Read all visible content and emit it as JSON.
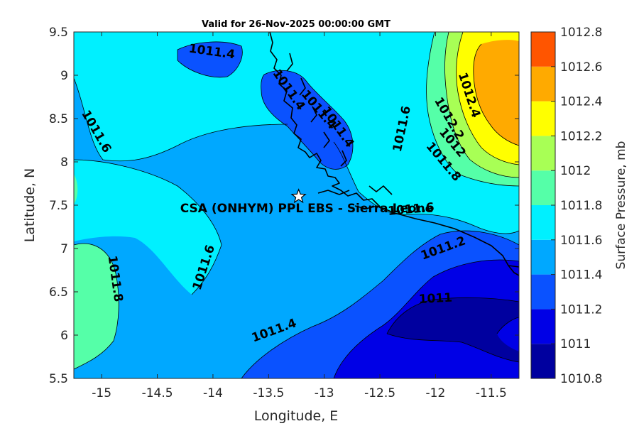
{
  "title": "Valid for 26-Nov-2025 00:00:00 GMT",
  "xlabel": "Longitude, E",
  "ylabel": "Latitude, N",
  "colorbar_label": "Surface Pressure, mb",
  "site_label": "CSA (ONHYM) PPL EBS  - Sierra Leone",
  "chart_data": {
    "type": "contour-map",
    "title": "Valid for 26-Nov-2025 00:00:00 GMT",
    "xlabel": "Longitude, E",
    "ylabel": "Latitude, N",
    "xlim": [
      -15.25,
      -11.25
    ],
    "ylim": [
      5.5,
      9.5
    ],
    "x_ticks": [
      -15,
      -14.5,
      -14,
      -13.5,
      -13,
      -12.5,
      -12,
      -11.5
    ],
    "x_tick_labels": [
      "-15",
      "-14.5",
      "-14",
      "-13.5",
      "-13",
      "-12.5",
      "-12",
      "-11.5"
    ],
    "y_ticks": [
      5.5,
      6,
      6.5,
      7,
      7.5,
      8,
      8.5,
      9,
      9.5
    ],
    "y_tick_labels": [
      "5.5",
      "6",
      "6.5",
      "7",
      "7.5",
      "8",
      "8.5",
      "9",
      "9.5"
    ],
    "site": {
      "lon": -13.23,
      "lat": 7.6,
      "marker": "star"
    },
    "colorbar": {
      "label": "Surface Pressure, mb",
      "levels": [
        1010.8,
        1011,
        1011.2,
        1011.4,
        1011.6,
        1011.8,
        1012,
        1012.2,
        1012.4,
        1012.6,
        1012.8
      ],
      "level_labels": [
        "1010.8",
        "1011",
        "1011.2",
        "1011.4",
        "1011.6",
        "1011.8",
        "1012",
        "1012.2",
        "1012.4",
        "1012.6",
        "1012.8"
      ],
      "colors": [
        "#00009f",
        "#0000e6",
        "#0a52ff",
        "#00a8ff",
        "#00f0ff",
        "#55ffa8",
        "#a8ff55",
        "#ffff00",
        "#ffaa00",
        "#ff5500",
        "#ff0000"
      ]
    },
    "contour_labels": [
      {
        "text": "1011.4",
        "lon": -14.01,
        "lat": 9.27,
        "angle": 8
      },
      {
        "text": "1011.4",
        "lon": -13.32,
        "lat": 8.83,
        "angle": 55
      },
      {
        "text": "1011.4",
        "lon": -13.05,
        "lat": 8.6,
        "angle": 50
      },
      {
        "text": "1011.4",
        "lon": -12.88,
        "lat": 8.4,
        "angle": 55
      },
      {
        "text": "1011.6",
        "lon": -15.05,
        "lat": 8.35,
        "angle": 60
      },
      {
        "text": "1011.6",
        "lon": -12.3,
        "lat": 8.38,
        "angle": -78
      },
      {
        "text": "1011.6",
        "lon": -12.22,
        "lat": 7.45,
        "angle": -5
      },
      {
        "text": "1011.6",
        "lon": -14.08,
        "lat": 6.78,
        "angle": -72
      },
      {
        "text": "1011.8",
        "lon": -14.88,
        "lat": 6.65,
        "angle": 82
      },
      {
        "text": "1011.8",
        "lon": -11.93,
        "lat": 8.0,
        "angle": 50
      },
      {
        "text": "1012",
        "lon": -11.85,
        "lat": 8.22,
        "angle": 50
      },
      {
        "text": "1012.2",
        "lon": -11.88,
        "lat": 8.5,
        "angle": 60
      },
      {
        "text": "1012.4",
        "lon": -11.7,
        "lat": 8.77,
        "angle": 72
      },
      {
        "text": "1011.2",
        "lon": -11.93,
        "lat": 7.0,
        "angle": -20
      },
      {
        "text": "1011",
        "lon": -12.0,
        "lat": 6.42,
        "angle": -3
      },
      {
        "text": "1011.4",
        "lon": -13.45,
        "lat": 6.05,
        "angle": -20
      }
    ]
  }
}
